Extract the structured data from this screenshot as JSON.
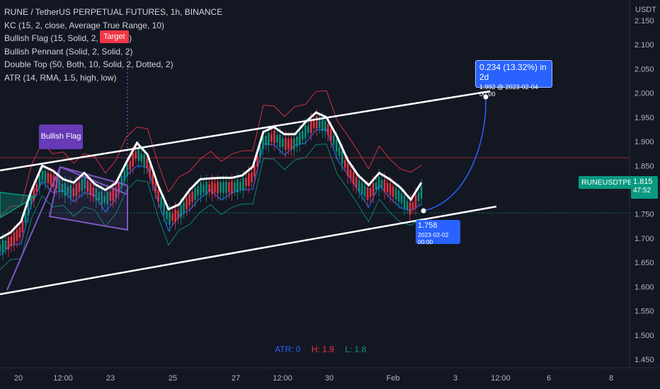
{
  "header": {
    "title": "RUNE / TetherUS PERPETUAL FUTURES, 1h, BINANCE",
    "indicators": [
      "KC (15, 2, close, Average True Range, 10)",
      "Bullish Flag (15, Solid, 2, Solid, 2)",
      "Bullish Pennant (Solid, 2, Solid, 2)",
      "Double Top (50, Both, 10, Solid, 2, Dotted, 2)",
      "ATR (14, RMA, 1.5, high, low)"
    ]
  },
  "currency": "USDT",
  "labels": {
    "target": "Target",
    "bullish_flag": "Bullish Flag",
    "projection_line1": "0.234 (13.32%) in 2d",
    "projection_line2": "1.992 @ 2023-02-04  00:00",
    "start_line1": "1.758",
    "start_line2": "2023-02-02 00:00",
    "symbol": "RUNEUSDTPERP",
    "price": "1.815",
    "countdown": "47:52"
  },
  "atr_legend": {
    "atr": "ATR: 0",
    "high": "H: 1.9",
    "low": "L: 1.8"
  },
  "colors": {
    "background": "#131722",
    "price_label": "#089981",
    "projection": "#2962ff",
    "flag_label": "#673ab7",
    "target_label": "#f23645",
    "kc_upper": "#f23645",
    "kc_lower": "#089981",
    "kc_mid": "#2962ff"
  },
  "chart_data": {
    "type": "line",
    "ylim": [
      1.45,
      2.15
    ],
    "y_ticks": [
      "2.150",
      "2.100",
      "2.050",
      "2.000",
      "1.950",
      "1.900",
      "1.850",
      "1.800",
      "1.750",
      "1.700",
      "1.650",
      "1.600",
      "1.550",
      "1.500",
      "1.450"
    ],
    "x_ticks": [
      "20",
      "12:00",
      "23",
      "25",
      "27",
      "12:00",
      "30",
      "Feb",
      "3",
      "12:00",
      "6",
      "8"
    ],
    "series": [
      {
        "values": [
          1.7,
          1.712,
          1.735,
          1.8,
          1.85,
          1.84,
          1.822,
          1.815,
          1.835,
          1.812,
          1.8,
          1.814,
          1.857,
          1.897,
          1.873,
          1.81,
          1.76,
          1.77,
          1.8,
          1.822,
          1.824,
          1.825,
          1.825,
          1.83,
          1.848,
          1.92,
          1.93,
          1.915,
          1.915,
          1.94,
          1.96,
          1.95,
          1.91,
          1.862,
          1.83,
          1.81,
          1.835,
          1.822,
          1.805,
          1.78,
          1.815
        ]
      }
    ],
    "channel": {
      "upper": [
        [
          0,
          1.846
        ],
        [
          692,
          2.001
        ]
      ],
      "lower": [
        [
          0,
          1.59
        ],
        [
          701,
          1.765
        ]
      ]
    },
    "projection": {
      "from": 1.758,
      "to": 1.992,
      "change": 0.234,
      "change_pct": 13.32
    },
    "last_price": 1.815
  }
}
